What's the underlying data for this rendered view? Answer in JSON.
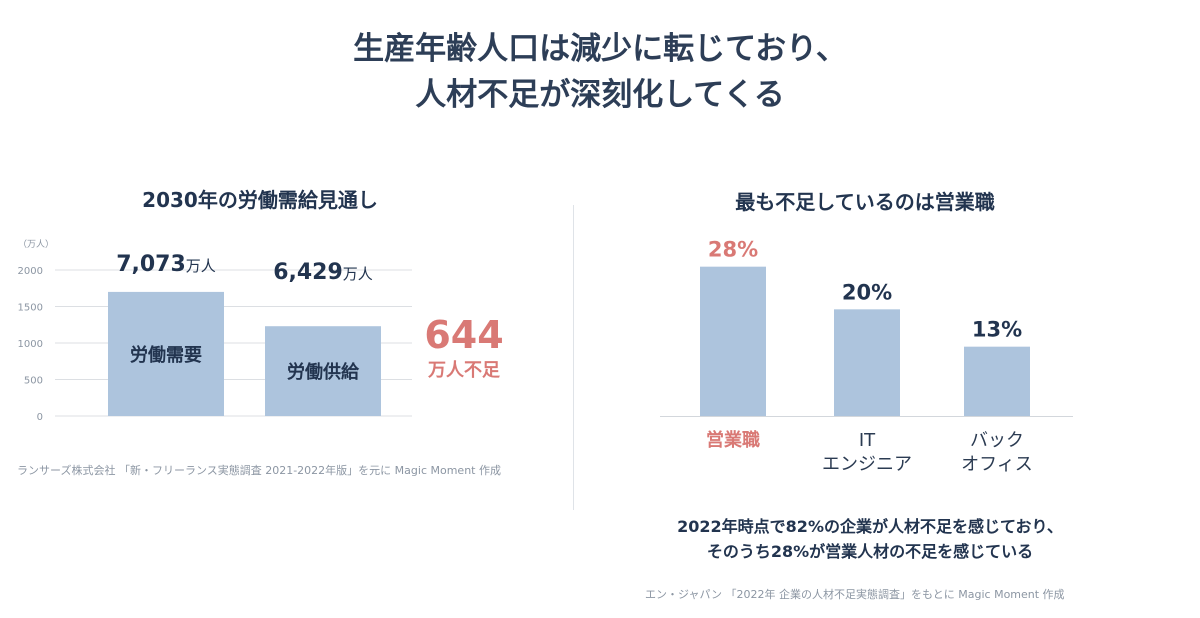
{
  "title": {
    "line1": "生産年齢人口は減少に転じており、",
    "line2": "人材不足が深刻化してくる"
  },
  "left_chart": {
    "subtitle": "2030年の労働需給見通し",
    "unit_label": "（万人）",
    "value_unit": "万人",
    "source": "ランサーズ株式会社 「新・フリーランス実態調査 2021-2022年版」を元に Magic Moment 作成",
    "shortage_value": "644",
    "shortage_label": "万人不足"
  },
  "right_chart": {
    "subtitle": "最も不足しているのは営業職",
    "source": "エン・ジャパン 「2022年 企業の人材不足実態調査」をもとに Magic Moment 作成"
  },
  "conclusion": {
    "line1": "2022年時点で82%の企業が人材不足を感じており、",
    "line2": "そのうち28%が営業人材の不足を感じている"
  },
  "colors": {
    "bar": "#adc4dd",
    "highlight": "#d97975",
    "text_dark": "#22344f",
    "grid": "#dcdfe3"
  },
  "chart_data": [
    {
      "type": "bar",
      "title": "2030年の労働需給見通し",
      "ylabel": "（万人）",
      "ylim": [
        0,
        2000
      ],
      "yticks": [
        0,
        500,
        1000,
        1500,
        2000
      ],
      "categories": [
        "労働需要",
        "労働供給"
      ],
      "values": [
        7073,
        6429
      ],
      "bar_heights_axis": [
        1700,
        1230
      ],
      "value_labels": [
        "7,073",
        "6,429"
      ],
      "annotation": {
        "value": "644",
        "text": "万人不足"
      }
    },
    {
      "type": "bar",
      "title": "最も不足しているのは営業職",
      "categories": [
        "営業職",
        "IT\nエンジニア",
        "バック\nオフィス"
      ],
      "category_lines": [
        [
          "営業職"
        ],
        [
          "IT",
          "エンジニア"
        ],
        [
          "バック",
          "オフィス"
        ]
      ],
      "values": [
        28,
        20,
        13
      ],
      "value_labels": [
        "28%",
        "20%",
        "13%"
      ],
      "highlight_index": 0,
      "ylim": [
        0,
        30
      ]
    }
  ]
}
